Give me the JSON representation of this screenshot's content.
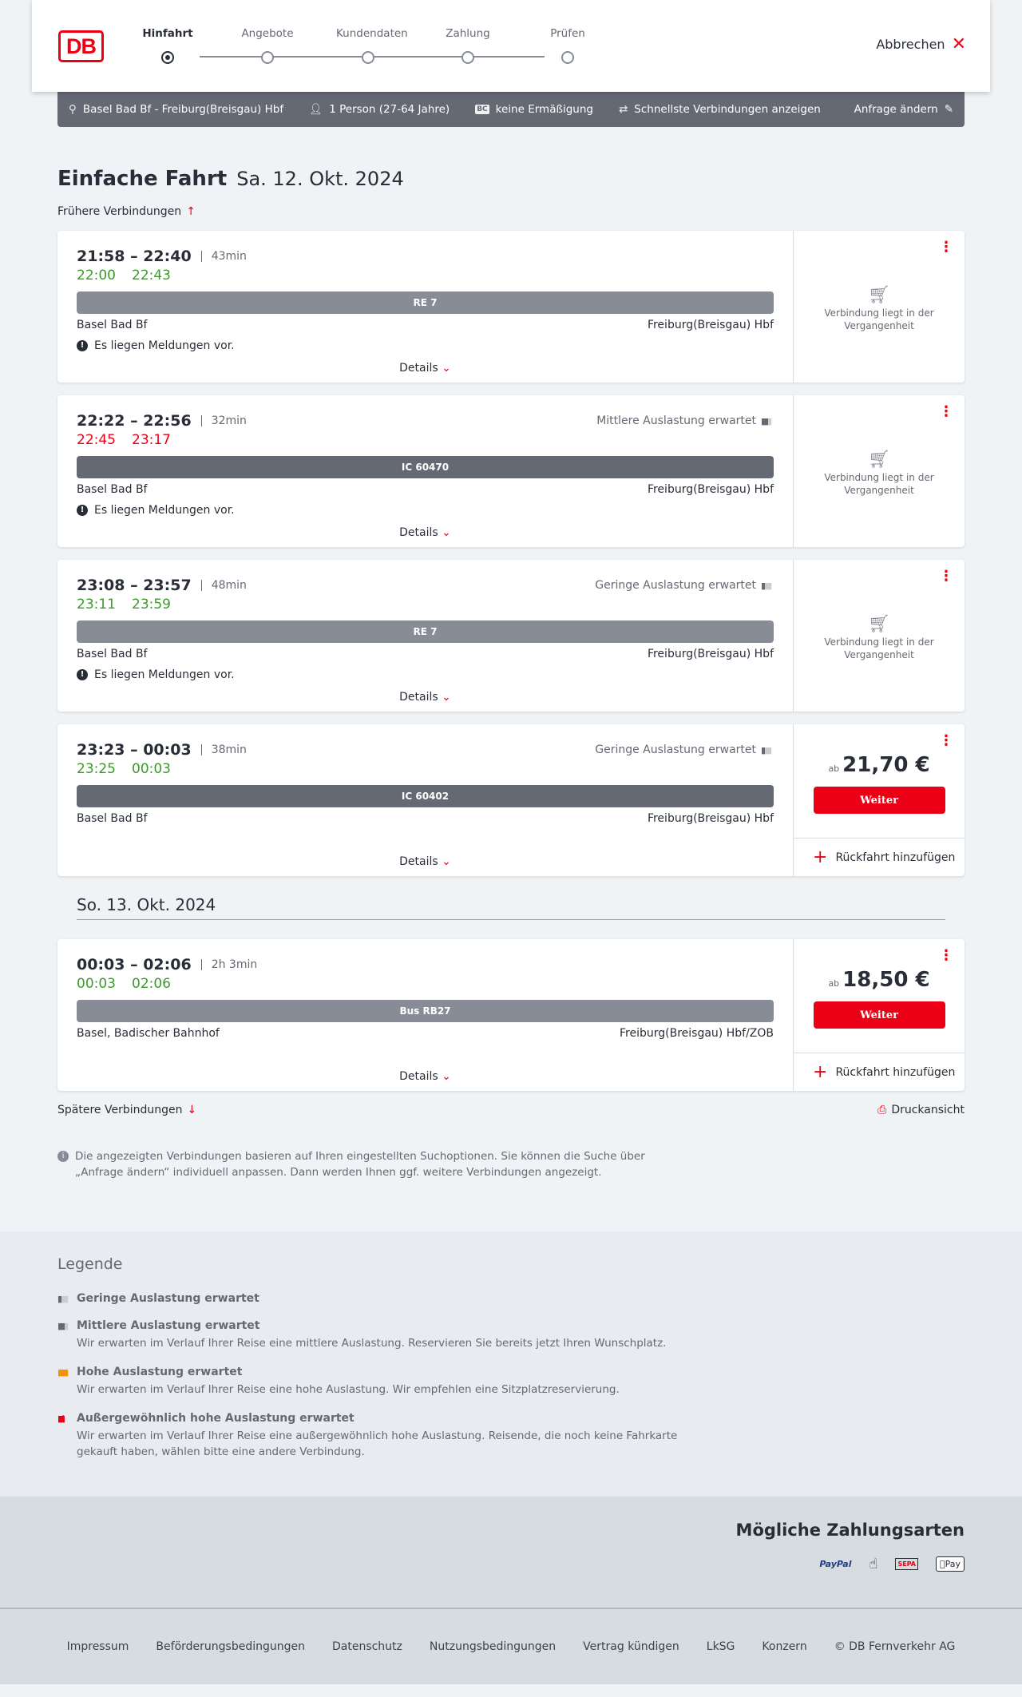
{
  "header": {
    "logo": "DB",
    "steps": [
      "Hinfahrt",
      "Angebote",
      "Kundendaten",
      "Zahlung",
      "Prüfen"
    ],
    "active_step": 0,
    "cancel": "Abbrechen"
  },
  "search_bar": {
    "route": "Basel Bad Bf - Freiburg(Breisgau) Hbf",
    "passengers": "1 Person (27-64 Jahre)",
    "discount_badge": "BC",
    "discount": "keine Ermäßigung",
    "option": "Schnellste Verbindungen anzeigen",
    "edit": "Anfrage ändern"
  },
  "title": {
    "trip": "Einfache Fahrt",
    "date": "Sa. 12. Okt. 2024"
  },
  "earlier": "Frühere Verbindungen",
  "details": "Details",
  "message": "Es liegen Meldungen vor.",
  "past_text": "Verbindung liegt in der Vergangenheit",
  "weiter": "Weiter",
  "return": "Rückfahrt hinzufügen",
  "ab": "ab",
  "connections": [
    {
      "times": "21:58 – 22:40",
      "duration": "43min",
      "rt_dep": "22:00",
      "rt_arr": "22:43",
      "rt_status": "on-time",
      "train": "RE 7",
      "from": "Basel Bad Bf",
      "to": "Freiburg(Breisgau) Hbf",
      "load": ""
    },
    {
      "times": "22:22 – 22:56",
      "duration": "32min",
      "rt_dep": "22:45",
      "rt_arr": "23:17",
      "rt_status": "delayed",
      "train": "IC 60470",
      "from": "Basel Bad Bf",
      "to": "Freiburg(Breisgau) Hbf",
      "load": "Mittlere Auslastung erwartet"
    },
    {
      "times": "23:08 – 23:57",
      "duration": "48min",
      "rt_dep": "23:11",
      "rt_arr": "23:59",
      "rt_status": "on-time",
      "train": "RE 7",
      "from": "Basel Bad Bf",
      "to": "Freiburg(Breisgau) Hbf",
      "load": "Geringe Auslastung erwartet"
    },
    {
      "times": "23:23 – 00:03",
      "duration": "38min",
      "rt_dep": "23:25",
      "rt_arr": "00:03",
      "rt_status": "on-time",
      "train": "IC 60402",
      "from": "Basel Bad Bf",
      "to": "Freiburg(Breisgau) Hbf",
      "load": "Geringe Auslastung erwartet",
      "price": "21,70 €"
    },
    {
      "times": "00:03 – 02:06",
      "duration": "2h 3min",
      "rt_dep": "00:03",
      "rt_arr": "02:06",
      "rt_status": "on-time",
      "train": "Bus RB27",
      "from": "Basel, Badischer Bahnhof",
      "to": "Freiburg(Breisgau) Hbf/ZOB",
      "load": "",
      "price": "18,50 €"
    }
  ],
  "next_date": "So. 13. Okt. 2024",
  "later": "Spätere Verbindungen",
  "print": "Druckansicht",
  "info": "Die angezeigten Verbindungen basieren auf Ihren eingestellten Suchoptionen. Sie können die Suche über „Anfrage ändern“ individuell anpassen. Dann werden Ihnen ggf. weitere Verbindungen angezeigt.",
  "legend": {
    "title": "Legende",
    "items": [
      {
        "title": "Geringe Auslastung erwartet",
        "text": ""
      },
      {
        "title": "Mittlere Auslastung erwartet",
        "text": "Wir erwarten im Verlauf Ihrer Reise eine mittlere Auslastung. Reservieren Sie bereits jetzt Ihren Wunschplatz."
      },
      {
        "title": "Hohe Auslastung erwartet",
        "text": "Wir erwarten im Verlauf Ihrer Reise eine hohe Auslastung. Wir empfehlen eine Sitzplatzreservierung."
      },
      {
        "title": "Außergewöhnlich hohe Auslastung erwartet",
        "text": "Wir erwarten im Verlauf Ihrer Reise eine außergewöhnlich hohe Auslastung. Reisende, die noch keine Fahrkarte gekauft haben, wählen bitte eine andere Verbindung."
      }
    ]
  },
  "payment": {
    "title": "Mögliche Zahlungsarten",
    "methods": [
      "PayPal",
      "Kreditkarte",
      "SEPA",
      "Pay"
    ]
  },
  "footer": [
    "Impressum",
    "Beförderungsbedingungen",
    "Datenschutz",
    "Nutzungsbedingungen",
    "Vertrag kündigen",
    "LkSG",
    "Konzern",
    "© DB Fernverkehr AG"
  ],
  "colors": {
    "brand": "#ec0016",
    "on_time": "#3c9b2a",
    "delayed": "#ec0016",
    "bar": "#646973"
  }
}
